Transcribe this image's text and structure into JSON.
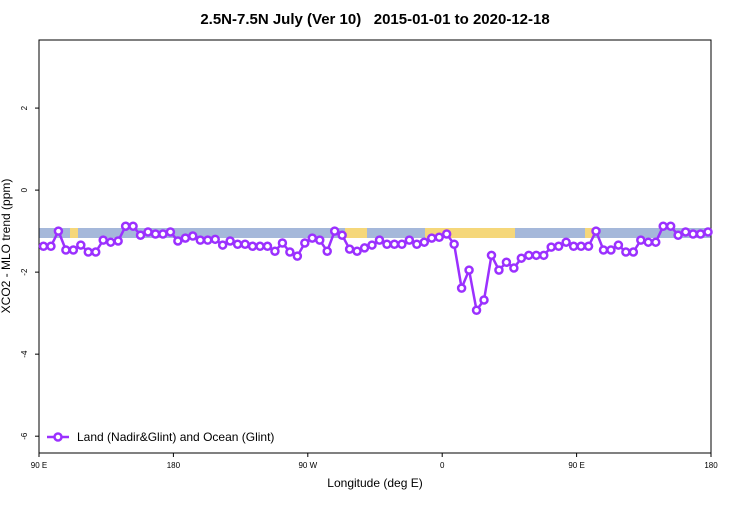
{
  "chart_data": {
    "type": "line",
    "title": "2.5N-7.5N July (Ver 10)   2015-01-01 to 2020-12-18",
    "x_label": "Longitude (deg E)",
    "y_label": "XCO2 - MLO trend (ppm)",
    "xlim": [
      90,
      540
    ],
    "xticks": [
      {
        "value": 90,
        "label": "90 E"
      },
      180,
      {
        "value": 270,
        "label": "90 W"
      },
      {
        "value": 360,
        "label": "0"
      },
      {
        "value": 450,
        "label": "90 E"
      },
      {
        "value": 540,
        "label": "180"
      }
    ],
    "ylim": [
      -6.41,
      3.66
    ],
    "yticks": [
      2,
      0,
      -2,
      -4,
      -6
    ],
    "legend": "bottom-left",
    "x": [
      93,
      98,
      103,
      108,
      113,
      118,
      123,
      128,
      133,
      138,
      143,
      148,
      153,
      158,
      163,
      168,
      173,
      178,
      183,
      188,
      193,
      198,
      203,
      208,
      213,
      218,
      223,
      228,
      233,
      238,
      243,
      248,
      253,
      258,
      263,
      268,
      273,
      278,
      283,
      288,
      293,
      298,
      303,
      308,
      313,
      318,
      323,
      328,
      333,
      338,
      343,
      348,
      353,
      358,
      363,
      368,
      373,
      378,
      383,
      388,
      393,
      398,
      403,
      408,
      413,
      418,
      423,
      428,
      433,
      438,
      443,
      448,
      453,
      458,
      463,
      468,
      473,
      478,
      483,
      488,
      493,
      498,
      503,
      508,
      513,
      518,
      523,
      528,
      533,
      538
    ],
    "series": [
      {
        "name": "Land (Nadir&Glint) and Ocean (Glint)",
        "color": "#9b30ff",
        "values": [
          -1.37,
          -1.37,
          -1.0,
          -1.46,
          -1.46,
          -1.34,
          -1.51,
          -1.51,
          -1.22,
          -1.27,
          -1.24,
          -0.88,
          -0.88,
          -1.1,
          -1.02,
          -1.07,
          -1.07,
          -1.02,
          -1.24,
          -1.17,
          -1.12,
          -1.22,
          -1.22,
          -1.2,
          -1.34,
          -1.24,
          -1.32,
          -1.32,
          -1.37,
          -1.37,
          -1.37,
          -1.49,
          -1.29,
          -1.51,
          -1.61,
          -1.29,
          -1.17,
          -1.22,
          -1.49,
          -1.0,
          -1.1,
          -1.44,
          -1.49,
          -1.41,
          -1.34,
          -1.22,
          -1.32,
          -1.32,
          -1.32,
          -1.22,
          -1.32,
          -1.27,
          -1.17,
          -1.15,
          -1.07,
          -1.32,
          -2.39,
          -1.95,
          -2.93,
          -2.68,
          -1.59,
          -1.95,
          -1.76,
          -1.9,
          -1.66,
          -1.59,
          -1.59,
          -1.59,
          -1.39,
          -1.37,
          -1.27,
          -1.37,
          -1.37,
          -1.37,
          -1.0,
          -1.46,
          -1.46,
          -1.34,
          -1.51,
          -1.51,
          -1.22,
          -1.27,
          -1.27,
          -0.88,
          -0.88,
          -1.1,
          -1.02,
          -1.07,
          -1.07,
          -1.02
        ]
      }
    ]
  }
}
